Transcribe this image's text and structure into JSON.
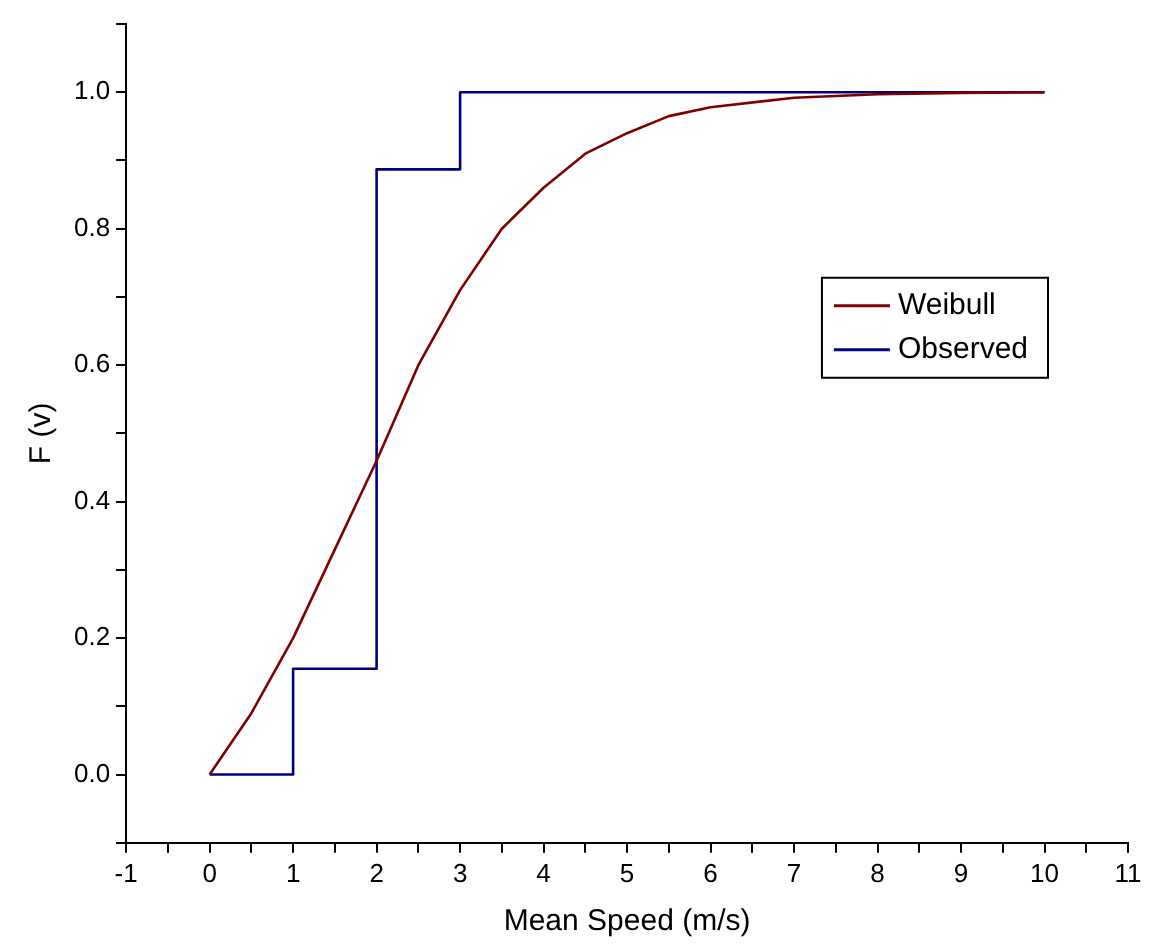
{
  "chart_data": {
    "type": "line",
    "xlabel": "Mean Speed (m/s)",
    "ylabel": "F (v)",
    "xlim": [
      -1,
      11
    ],
    "ylim": [
      -0.1,
      1.1
    ],
    "xticks": [
      -1,
      {
        "value": -0.5,
        "label": null
      },
      0,
      {
        "value": 0.5,
        "label": null
      },
      1,
      {
        "value": 1.5,
        "label": null
      },
      2,
      {
        "value": 2.5,
        "label": null
      },
      3,
      {
        "value": 3.5,
        "label": null
      },
      4,
      {
        "value": 4.5,
        "label": null
      },
      5,
      {
        "value": 5.5,
        "label": null
      },
      6,
      {
        "value": 6.5,
        "label": null
      },
      7,
      {
        "value": 7.5,
        "label": null
      },
      8,
      {
        "value": 8.5,
        "label": null
      },
      9,
      {
        "value": 9.5,
        "label": null
      },
      10,
      {
        "value": 10.5,
        "label": null
      },
      11
    ],
    "yticks": [
      {
        "value": -0.1,
        "label": null
      },
      {
        "value": 0,
        "label": "0.0"
      },
      {
        "value": 0.1,
        "label": null
      },
      {
        "value": 0.2,
        "label": "0.2"
      },
      {
        "value": 0.3,
        "label": null
      },
      {
        "value": 0.4,
        "label": "0.4"
      },
      {
        "value": 0.5,
        "label": null
      },
      {
        "value": 0.6,
        "label": "0.6"
      },
      {
        "value": 0.7,
        "label": null
      },
      {
        "value": 0.8,
        "label": "0.8"
      },
      {
        "value": 0.9,
        "label": null
      },
      {
        "value": 1.0,
        "label": "1.0"
      },
      {
        "value": 1.1,
        "label": null
      }
    ],
    "grid": false,
    "legend": "right",
    "marker": "none",
    "line_style": "solid",
    "series": [
      {
        "name": "Weibull",
        "color": "#800000",
        "type": "line",
        "x": [
          0,
          0.5,
          1,
          1.5,
          2,
          2.5,
          3,
          3.5,
          4,
          4.5,
          5,
          5.5,
          6,
          7,
          8,
          9,
          10
        ],
        "values": [
          0,
          0.09,
          0.2,
          0.33,
          0.46,
          0.6,
          0.71,
          0.8,
          0.86,
          0.91,
          0.94,
          0.965,
          0.978,
          0.992,
          0.997,
          0.999,
          1
        ]
      },
      {
        "name": "Observed",
        "color": "#000080",
        "type": "step",
        "x": [
          0,
          1,
          2,
          3,
          10
        ],
        "values": [
          0,
          0.155,
          0.887,
          1,
          1
        ]
      }
    ]
  }
}
